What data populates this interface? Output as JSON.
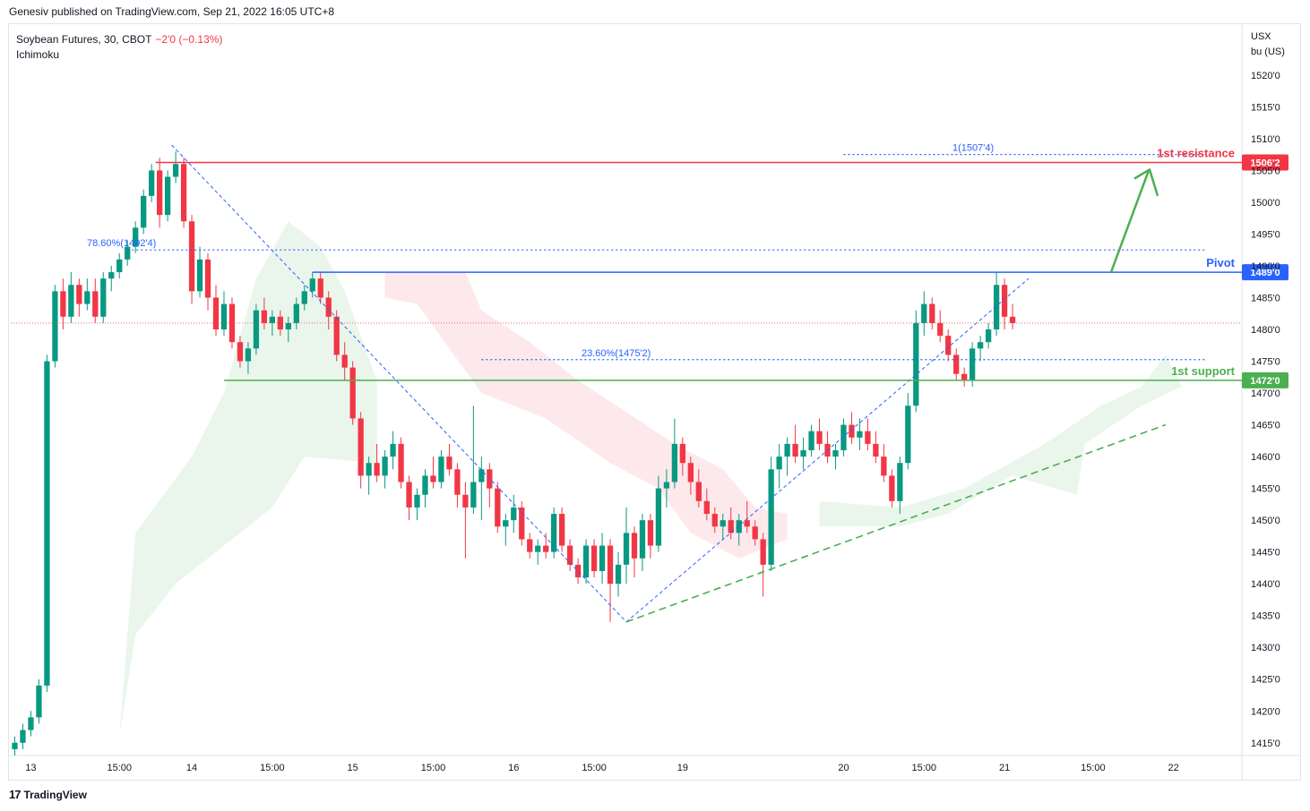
{
  "header": {
    "published": "Genesiv published on TradingView.com, Sep 21, 2022 16:05 UTC+8"
  },
  "legend": {
    "symbol": "Soybean Futures, 30, CBOT",
    "change": "−2'0 (−0.13%)",
    "indicator": "Ichimoku"
  },
  "price_axis": {
    "currency": "USX",
    "unit": "bu (US)"
  },
  "footer": {
    "brand": "TradingView"
  },
  "colors": {
    "up": "#089981",
    "down": "#f23645",
    "resistance": "#f23645",
    "pivot": "#2962ff",
    "support": "#4caf50",
    "fib": "#2962ff",
    "cloud_bull": "#e8f5e9",
    "cloud_bear": "#fde7e9"
  },
  "chart_data": {
    "type": "candlestick",
    "y_axis_labels": [
      "1520'0",
      "1515'0",
      "1510'0",
      "1505'0",
      "1500'0",
      "1495'0",
      "1490'0",
      "1485'0",
      "1480'0",
      "1475'0",
      "1470'0",
      "1465'0",
      "1460'0",
      "1455'0",
      "1450'0",
      "1445'0",
      "1440'0",
      "1435'0",
      "1430'0",
      "1425'0",
      "1420'0",
      "1415'0"
    ],
    "y_ticks": [
      1520,
      1515,
      1510,
      1505,
      1500,
      1495,
      1490,
      1485,
      1480,
      1475,
      1470,
      1465,
      1460,
      1455,
      1450,
      1445,
      1440,
      1435,
      1430,
      1425,
      1420,
      1415
    ],
    "ylim": [
      1413,
      1528
    ],
    "x_axis_labels": [
      "13",
      "15:00",
      "14",
      "15:00",
      "15",
      "15:00",
      "16",
      "15:00",
      "19",
      "20",
      "15:00",
      "21",
      "15:00",
      "22"
    ],
    "x_label_bars": [
      2,
      13,
      22,
      32,
      42,
      52,
      62,
      72,
      83,
      103,
      113,
      123,
      134,
      144
    ],
    "bars_total": 153,
    "levels": [
      {
        "name": "1st resistance",
        "price": 1506.25,
        "label": "1506'2",
        "text": "1st resistance",
        "color": "#f23645"
      },
      {
        "name": "Pivot",
        "price": 1489,
        "label": "1489'0",
        "text": "Pivot",
        "color": "#2962ff"
      },
      {
        "name": "1st support",
        "price": 1472,
        "label": "1472'0",
        "text": "1st support",
        "color": "#4caf50"
      }
    ],
    "fib_levels": [
      {
        "text": "1(1507'4)",
        "price": 1507.5
      },
      {
        "text": "78.60%(1492'4)",
        "price": 1492.5
      },
      {
        "text": "23.60%(1475'2)",
        "price": 1475.25
      }
    ],
    "current_price": 1481.0,
    "candles": [
      [
        1414,
        1416,
        1413,
        1415
      ],
      [
        1415,
        1418,
        1414,
        1417
      ],
      [
        1417,
        1420,
        1416,
        1419
      ],
      [
        1419,
        1425,
        1418,
        1424
      ],
      [
        1424,
        1476,
        1423,
        1475
      ],
      [
        1475,
        1487,
        1474,
        1486
      ],
      [
        1486,
        1488,
        1480,
        1482
      ],
      [
        1482,
        1489,
        1481,
        1487
      ],
      [
        1487,
        1488,
        1482,
        1484
      ],
      [
        1484,
        1488,
        1483,
        1486
      ],
      [
        1486,
        1488,
        1481,
        1482
      ],
      [
        1482,
        1489,
        1481,
        1488
      ],
      [
        1488,
        1490,
        1486,
        1489
      ],
      [
        1489,
        1492,
        1488,
        1491
      ],
      [
        1491,
        1494,
        1490,
        1493
      ],
      [
        1493,
        1497,
        1492,
        1496
      ],
      [
        1496,
        1502,
        1495,
        1501
      ],
      [
        1501,
        1506,
        1500,
        1505
      ],
      [
        1505,
        1507,
        1496,
        1498
      ],
      [
        1498,
        1505,
        1497,
        1504
      ],
      [
        1504,
        1508,
        1503,
        1506
      ],
      [
        1506,
        1507,
        1496,
        1497
      ],
      [
        1497,
        1498,
        1484,
        1486
      ],
      [
        1486,
        1493,
        1485,
        1491
      ],
      [
        1491,
        1492,
        1483,
        1485
      ],
      [
        1485,
        1487,
        1479,
        1480
      ],
      [
        1480,
        1486,
        1479,
        1484
      ],
      [
        1484,
        1485,
        1477,
        1478
      ],
      [
        1478,
        1479,
        1474,
        1475
      ],
      [
        1475,
        1478,
        1473,
        1477
      ],
      [
        1477,
        1484,
        1476,
        1483
      ],
      [
        1483,
        1485,
        1480,
        1481
      ],
      [
        1481,
        1483,
        1479,
        1482
      ],
      [
        1482,
        1483,
        1479,
        1480
      ],
      [
        1480,
        1482,
        1478,
        1481
      ],
      [
        1481,
        1485,
        1480,
        1484
      ],
      [
        1484,
        1487,
        1483,
        1486
      ],
      [
        1486,
        1489,
        1485,
        1488
      ],
      [
        1488,
        1489,
        1484,
        1485
      ],
      [
        1485,
        1486,
        1480,
        1482
      ],
      [
        1482,
        1483,
        1475,
        1476
      ],
      [
        1476,
        1478,
        1472,
        1474
      ],
      [
        1474,
        1475,
        1465,
        1466
      ],
      [
        1466,
        1467,
        1455,
        1457
      ],
      [
        1457,
        1460,
        1454,
        1459
      ],
      [
        1459,
        1462,
        1456,
        1457
      ],
      [
        1457,
        1461,
        1455,
        1460
      ],
      [
        1460,
        1464,
        1458,
        1462
      ],
      [
        1462,
        1463,
        1455,
        1456
      ],
      [
        1456,
        1457,
        1450,
        1452
      ],
      [
        1452,
        1455,
        1450,
        1454
      ],
      [
        1454,
        1458,
        1452,
        1457
      ],
      [
        1457,
        1460,
        1455,
        1456
      ],
      [
        1456,
        1461,
        1455,
        1460
      ],
      [
        1460,
        1462,
        1457,
        1458
      ],
      [
        1458,
        1459,
        1452,
        1454
      ],
      [
        1454,
        1456,
        1444,
        1452
      ],
      [
        1452,
        1468,
        1451,
        1456
      ],
      [
        1456,
        1460,
        1450,
        1458
      ],
      [
        1458,
        1459,
        1452,
        1455
      ],
      [
        1455,
        1456,
        1448,
        1449
      ],
      [
        1449,
        1451,
        1446,
        1450
      ],
      [
        1450,
        1454,
        1448,
        1452
      ],
      [
        1452,
        1453,
        1446,
        1447
      ],
      [
        1447,
        1448,
        1444,
        1445
      ],
      [
        1445,
        1447,
        1443,
        1446
      ],
      [
        1446,
        1448,
        1444,
        1445
      ],
      [
        1445,
        1452,
        1444,
        1451
      ],
      [
        1451,
        1452,
        1445,
        1446
      ],
      [
        1446,
        1447,
        1442,
        1443
      ],
      [
        1443,
        1444,
        1440,
        1441
      ],
      [
        1441,
        1447,
        1440,
        1446
      ],
      [
        1446,
        1447,
        1441,
        1442
      ],
      [
        1442,
        1448,
        1440,
        1446
      ],
      [
        1446,
        1447,
        1434,
        1440
      ],
      [
        1440,
        1445,
        1438,
        1443
      ],
      [
        1443,
        1452,
        1440,
        1448
      ],
      [
        1448,
        1449,
        1441,
        1444
      ],
      [
        1444,
        1451,
        1442,
        1450
      ],
      [
        1450,
        1451,
        1444,
        1446
      ],
      [
        1446,
        1457,
        1445,
        1455
      ],
      [
        1455,
        1458,
        1452,
        1456
      ],
      [
        1456,
        1466,
        1455,
        1462
      ],
      [
        1462,
        1463,
        1457,
        1459
      ],
      [
        1459,
        1460,
        1454,
        1456
      ],
      [
        1456,
        1458,
        1452,
        1453
      ],
      [
        1453,
        1455,
        1450,
        1451
      ],
      [
        1451,
        1452,
        1448,
        1449
      ],
      [
        1449,
        1451,
        1447,
        1450
      ],
      [
        1450,
        1452,
        1447,
        1448
      ],
      [
        1448,
        1451,
        1446,
        1450
      ],
      [
        1450,
        1453,
        1448,
        1449
      ],
      [
        1449,
        1450,
        1446,
        1447
      ],
      [
        1447,
        1448,
        1438,
        1443
      ],
      [
        1443,
        1460,
        1442,
        1458
      ],
      [
        1458,
        1462,
        1455,
        1460
      ],
      [
        1460,
        1463,
        1457,
        1462
      ],
      [
        1462,
        1465,
        1459,
        1460
      ],
      [
        1460,
        1463,
        1458,
        1461
      ],
      [
        1461,
        1465,
        1460,
        1464
      ],
      [
        1464,
        1466,
        1461,
        1462
      ],
      [
        1462,
        1464,
        1459,
        1460
      ],
      [
        1460,
        1462,
        1458,
        1461
      ],
      [
        1461,
        1466,
        1460,
        1465
      ],
      [
        1465,
        1467,
        1462,
        1463
      ],
      [
        1463,
        1466,
        1461,
        1464
      ],
      [
        1464,
        1466,
        1461,
        1462
      ],
      [
        1462,
        1464,
        1459,
        1460
      ],
      [
        1460,
        1462,
        1456,
        1457
      ],
      [
        1457,
        1458,
        1452,
        1453
      ],
      [
        1453,
        1460,
        1451,
        1459
      ],
      [
        1459,
        1470,
        1458,
        1468
      ],
      [
        1468,
        1483,
        1467,
        1481
      ],
      [
        1481,
        1486,
        1479,
        1484
      ],
      [
        1484,
        1485,
        1480,
        1481
      ],
      [
        1481,
        1483,
        1478,
        1479
      ],
      [
        1479,
        1480,
        1475,
        1476
      ],
      [
        1476,
        1477,
        1472,
        1473
      ],
      [
        1473,
        1474,
        1471,
        1472
      ],
      [
        1472,
        1478,
        1471,
        1477
      ],
      [
        1477,
        1479,
        1475,
        1478
      ],
      [
        1478,
        1481,
        1477,
        1480
      ],
      [
        1480,
        1489,
        1479,
        1487
      ],
      [
        1487,
        1488,
        1480,
        1482
      ],
      [
        1482,
        1484,
        1480,
        1481
      ]
    ]
  }
}
